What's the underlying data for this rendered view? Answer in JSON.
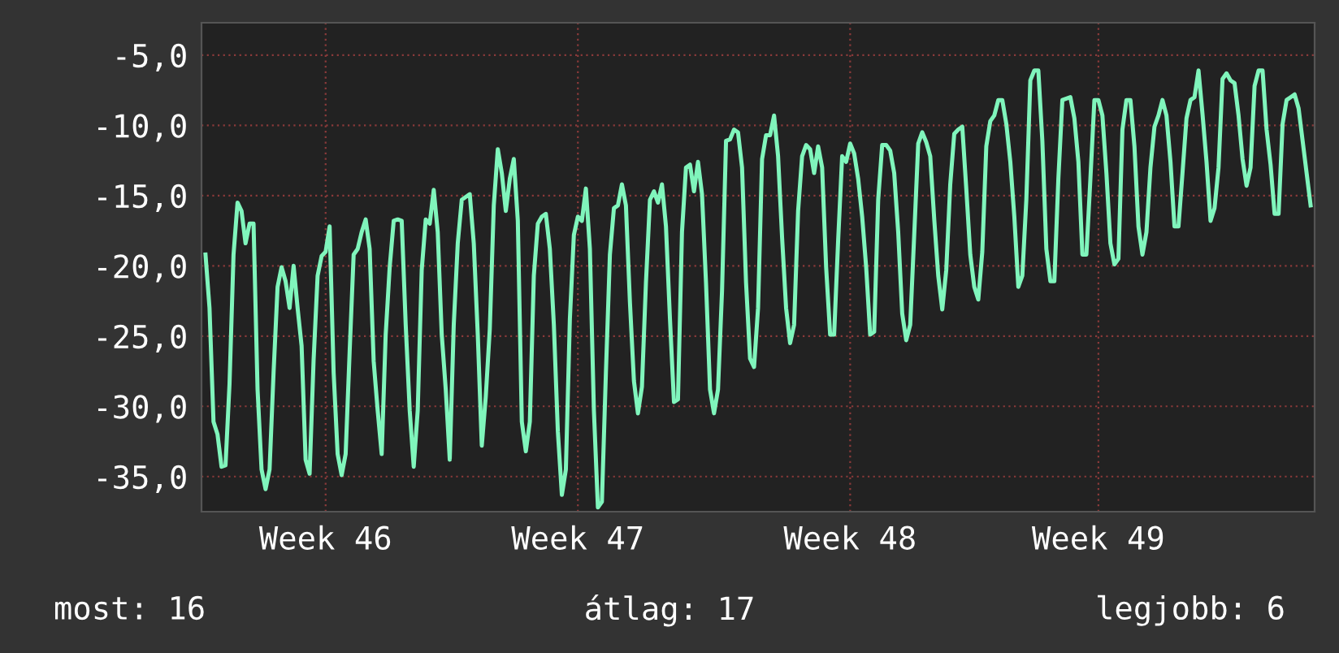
{
  "chart_data": {
    "type": "line",
    "series": [
      {
        "color": "#80f5bc",
        "values": [
          -19.2,
          -23.0,
          -31.1,
          -32.0,
          -34.3,
          -34.2,
          -28.4,
          -19.2,
          -15.5,
          -16.1,
          -18.4,
          -17.0,
          -17.0,
          -28.8,
          -34.5,
          -35.9,
          -34.5,
          -27.6,
          -21.5,
          -20.1,
          -21.1,
          -23.0,
          -20.0,
          -23.0,
          -25.7,
          -33.8,
          -34.8,
          -26.7,
          -20.7,
          -19.3,
          -19.0,
          -17.2,
          -27.6,
          -33.4,
          -34.9,
          -33.4,
          -26.1,
          -19.2,
          -18.8,
          -17.6,
          -16.7,
          -18.8,
          -26.8,
          -30.3,
          -33.4,
          -24.9,
          -20.1,
          -16.8,
          -16.7,
          -16.8,
          -24.2,
          -30.3,
          -34.3,
          -30.3,
          -20.3,
          -16.7,
          -17.0,
          -14.6,
          -17.6,
          -24.9,
          -28.8,
          -33.8,
          -24.2,
          -18.4,
          -15.3,
          -15.1,
          -14.9,
          -18.4,
          -24.9,
          -32.8,
          -29.3,
          -24.5,
          -15.7,
          -11.7,
          -13.4,
          -16.1,
          -13.8,
          -12.4,
          -16.8,
          -31.1,
          -33.2,
          -31.1,
          -20.7,
          -17.0,
          -16.5,
          -16.3,
          -18.8,
          -24.2,
          -31.8,
          -36.3,
          -34.5,
          -23.8,
          -17.8,
          -16.5,
          -16.8,
          -14.5,
          -18.8,
          -30.3,
          -37.2,
          -36.8,
          -27.6,
          -19.2,
          -15.9,
          -15.7,
          -14.2,
          -15.7,
          -22.6,
          -28.2,
          -30.5,
          -28.6,
          -21.2,
          -15.3,
          -14.7,
          -15.5,
          -14.2,
          -17.2,
          -23.8,
          -29.7,
          -29.5,
          -17.6,
          -13.0,
          -12.8,
          -14.7,
          -12.6,
          -14.9,
          -21.2,
          -28.8,
          -30.5,
          -28.8,
          -21.8,
          -11.1,
          -11.0,
          -10.3,
          -10.5,
          -13.0,
          -21.2,
          -26.6,
          -27.2,
          -23.0,
          -12.4,
          -10.7,
          -10.7,
          -9.3,
          -12.2,
          -18.0,
          -23.0,
          -25.5,
          -24.2,
          -16.1,
          -12.2,
          -11.4,
          -11.7,
          -13.4,
          -11.5,
          -13.0,
          -20.1,
          -24.9,
          -24.9,
          -18.2,
          -12.2,
          -12.6,
          -11.3,
          -12.0,
          -13.8,
          -16.5,
          -20.1,
          -24.9,
          -24.7,
          -15.3,
          -11.4,
          -11.4,
          -11.8,
          -13.4,
          -17.6,
          -23.4,
          -25.3,
          -24.2,
          -17.8,
          -11.3,
          -10.5,
          -11.2,
          -12.2,
          -16.7,
          -20.7,
          -23.1,
          -20.3,
          -14.2,
          -10.6,
          -10.3,
          -10.1,
          -14.5,
          -19.2,
          -21.5,
          -22.4,
          -19.0,
          -11.5,
          -9.7,
          -9.3,
          -8.2,
          -8.2,
          -9.9,
          -12.6,
          -16.5,
          -21.5,
          -20.7,
          -15.3,
          -6.8,
          -6.1,
          -6.1,
          -11.1,
          -18.8,
          -21.1,
          -21.1,
          -13.8,
          -8.2,
          -8.1,
          -8.0,
          -9.5,
          -12.6,
          -19.2,
          -19.2,
          -13.8,
          -8.2,
          -8.2,
          -9.3,
          -13.4,
          -18.4,
          -19.9,
          -19.5,
          -10.3,
          -8.2,
          -8.2,
          -11.5,
          -17.2,
          -19.2,
          -17.6,
          -13.0,
          -10.1,
          -9.3,
          -8.2,
          -9.3,
          -12.6,
          -17.2,
          -17.2,
          -13.4,
          -9.5,
          -8.2,
          -8.0,
          -6.1,
          -9.2,
          -12.6,
          -16.8,
          -15.9,
          -13.0,
          -6.7,
          -6.3,
          -6.8,
          -7.0,
          -9.3,
          -12.4,
          -14.3,
          -13.0,
          -7.2,
          -6.1,
          -6.1,
          -10.3,
          -12.8,
          -16.3,
          -16.3,
          -9.9,
          -8.2,
          -8.0,
          -7.8,
          -8.8,
          -11.1,
          -13.4,
          -15.7
        ]
      }
    ],
    "categories": [
      null,
      null,
      null,
      null,
      null,
      null,
      null,
      null,
      null,
      null,
      null,
      null,
      null,
      null,
      null,
      null,
      null,
      null,
      null,
      null,
      null,
      null,
      null,
      null,
      null,
      null,
      null,
      null,
      null,
      null,
      "Week 46",
      null,
      null,
      null,
      null,
      null,
      null,
      null,
      null,
      null,
      null,
      null,
      null,
      null,
      null,
      null,
      null,
      null,
      null,
      null,
      null,
      null,
      null,
      null,
      null,
      null,
      null,
      null,
      null,
      null,
      null,
      null,
      null,
      null,
      null,
      null,
      null,
      null,
      null,
      null,
      null,
      null,
      null,
      null,
      null,
      null,
      null,
      null,
      null,
      null,
      null,
      null,
      null,
      null,
      null,
      null,
      null,
      null,
      null,
      null,
      null,
      null,
      null,
      "Week 47",
      null,
      null,
      null,
      null,
      null,
      null,
      null,
      null,
      null,
      null,
      null,
      null,
      null,
      null,
      null,
      null,
      null,
      null,
      null,
      null,
      null,
      null,
      null,
      null,
      null,
      null,
      null,
      null,
      null,
      null,
      null,
      null,
      null,
      null,
      null,
      null,
      null,
      null,
      null,
      null,
      null,
      null,
      null,
      null,
      null,
      null,
      null,
      null,
      null,
      null,
      null,
      null,
      null,
      null,
      null,
      null,
      null,
      null,
      null,
      null,
      null,
      null,
      null,
      null,
      null,
      null,
      null,
      "Week 48",
      null,
      null,
      null,
      null,
      null,
      null,
      null,
      null,
      null,
      null,
      null,
      null,
      null,
      null,
      null,
      null,
      null,
      null,
      null,
      null,
      null,
      null,
      null,
      null,
      null,
      null,
      null,
      null,
      null,
      null,
      null,
      null,
      null,
      null,
      null,
      null,
      null,
      null,
      null,
      null,
      null,
      null,
      null,
      null,
      null,
      null,
      null,
      null,
      null,
      null,
      null,
      null,
      null,
      null,
      null,
      null,
      null,
      null,
      null,
      null,
      null,
      "Week 49",
      null,
      null,
      null,
      null,
      null,
      null,
      null,
      null,
      null,
      null,
      null,
      null,
      null,
      null,
      null,
      null,
      null,
      null,
      null,
      null,
      null,
      null,
      null,
      null,
      null,
      null,
      null,
      null,
      null,
      null,
      null,
      null,
      null,
      null,
      null,
      null,
      null,
      null,
      null,
      null,
      null,
      null,
      null,
      null,
      null,
      null,
      null,
      null,
      null,
      null,
      null,
      null,
      null
    ],
    "ylim": [
      -37.5,
      -2.7
    ],
    "yticks": [
      {
        "value": -35,
        "label": "-35,0"
      },
      {
        "value": -30,
        "label": "-30,0"
      },
      {
        "value": -25,
        "label": "-25,0"
      },
      {
        "value": -20,
        "label": "-20,0"
      },
      {
        "value": -15,
        "label": "-15,0"
      },
      {
        "value": -10,
        "label": "-10,0"
      },
      {
        "value": -5,
        "label": "-5,0"
      }
    ],
    "grid": true,
    "annotations": [
      "most: 16",
      "átlag: 17",
      "legjobb: 6"
    ]
  }
}
